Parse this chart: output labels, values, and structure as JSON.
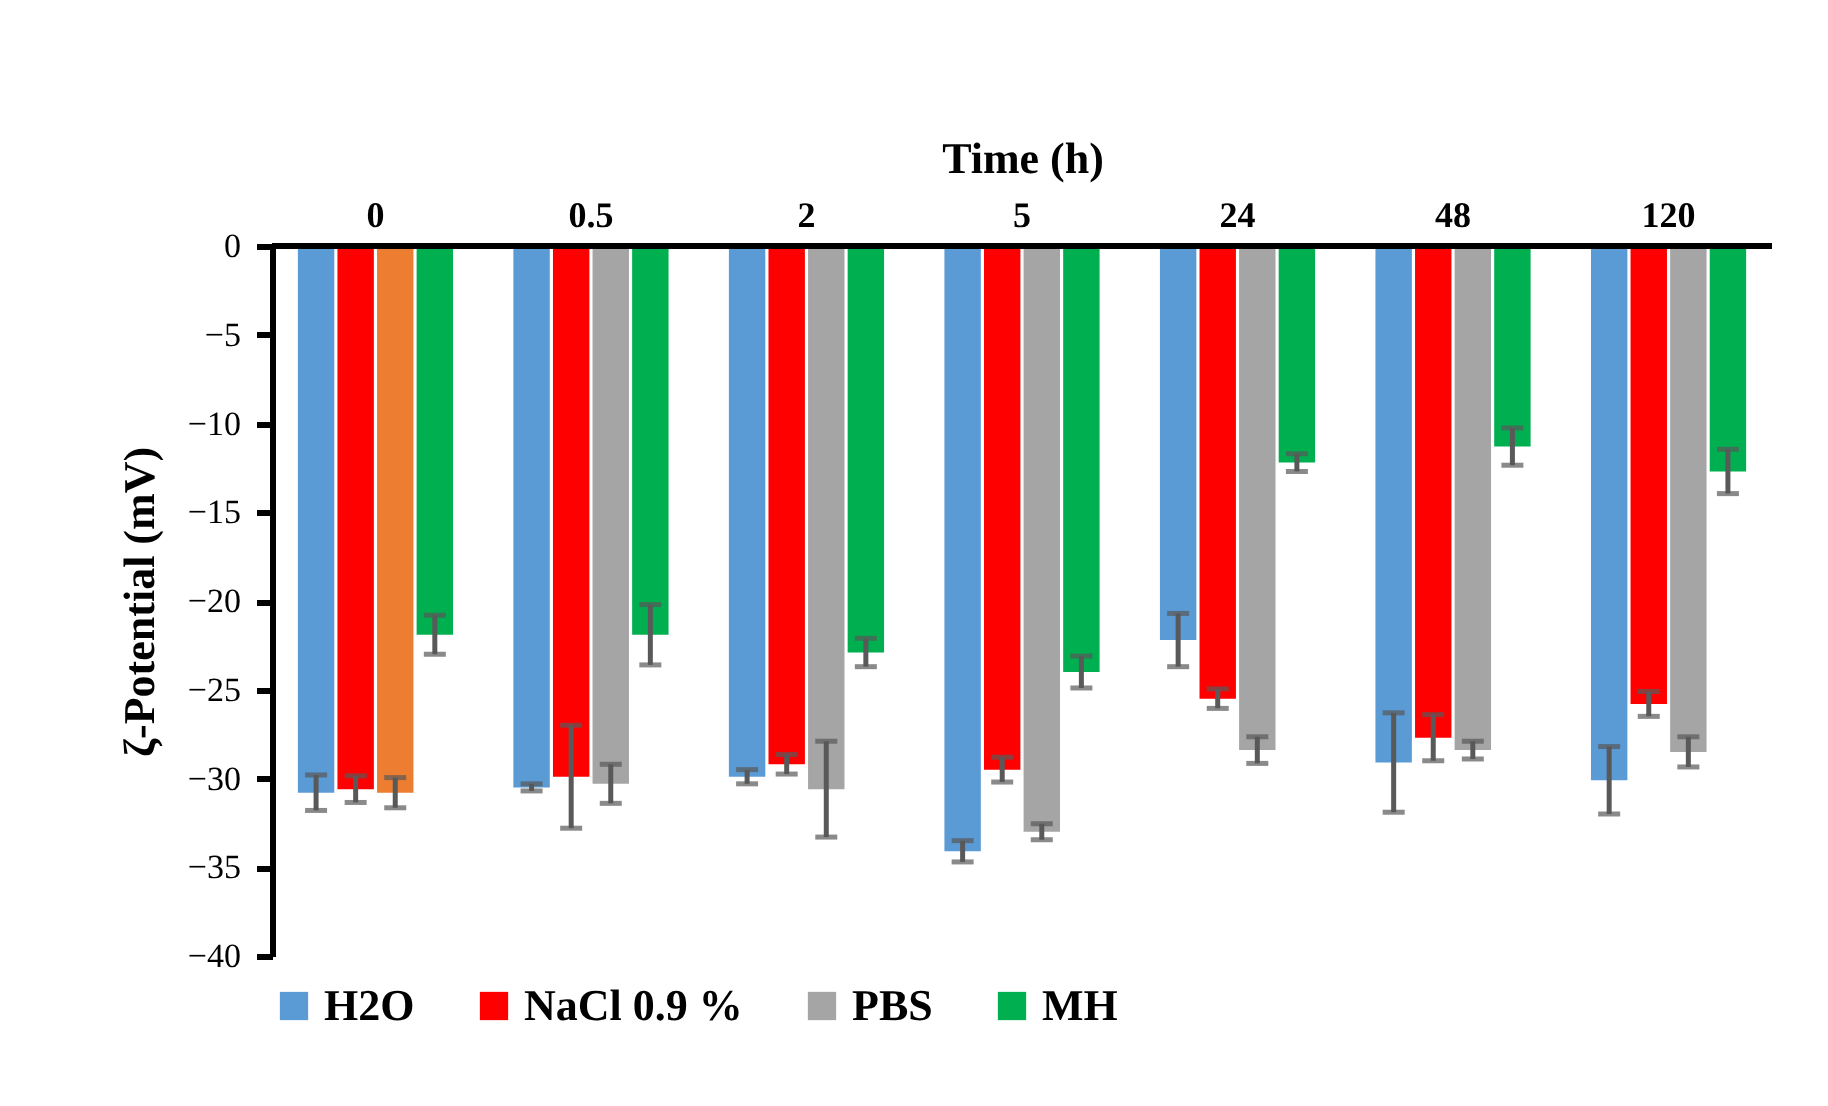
{
  "chart_data": {
    "type": "bar",
    "xlabel": "Time (h)",
    "ylabel": "ζ-Potential (mV)",
    "categories": [
      "0",
      "0.5",
      "2",
      "5",
      "24",
      "48",
      "120"
    ],
    "ylim": [
      -40,
      0
    ],
    "yticks": [
      0,
      -5,
      -10,
      -15,
      -20,
      -25,
      -30,
      -35,
      -40
    ],
    "grid": false,
    "legend": "bottom",
    "series": [
      {
        "name": "H2O",
        "color": "#5b9bd5",
        "values": [
          -30.8,
          -30.5,
          -29.9,
          -34.1,
          -22.2,
          -29.1,
          -30.1
        ],
        "errors": [
          1.0,
          0.2,
          0.4,
          0.6,
          1.5,
          2.8,
          1.9
        ]
      },
      {
        "name": "NaCl 0.9 %",
        "color": "#ff0000",
        "values": [
          -30.6,
          -29.9,
          -29.2,
          -29.5,
          -25.5,
          -27.7,
          -25.8
        ],
        "errors": [
          0.75,
          2.9,
          0.55,
          0.7,
          0.55,
          1.3,
          0.7
        ]
      },
      {
        "name": "PBS",
        "color": "#a5a5a5",
        "colors": [
          "#ed7d31",
          "#a5a5a5",
          "#a5a5a5",
          "#a5a5a5",
          "#a5a5a5",
          "#a5a5a5",
          "#a5a5a5"
        ],
        "values": [
          -30.8,
          -30.3,
          -30.6,
          -33.0,
          -28.4,
          -28.4,
          -28.5
        ],
        "errors": [
          0.85,
          1.1,
          2.7,
          0.45,
          0.75,
          0.5,
          0.85
        ]
      },
      {
        "name": "MH",
        "color": "#00b050",
        "values": [
          -21.9,
          -21.9,
          -22.9,
          -24.0,
          -12.2,
          -11.3,
          -12.7
        ],
        "errors": [
          1.1,
          1.7,
          0.8,
          0.9,
          0.5,
          1.05,
          1.25
        ]
      }
    ]
  }
}
